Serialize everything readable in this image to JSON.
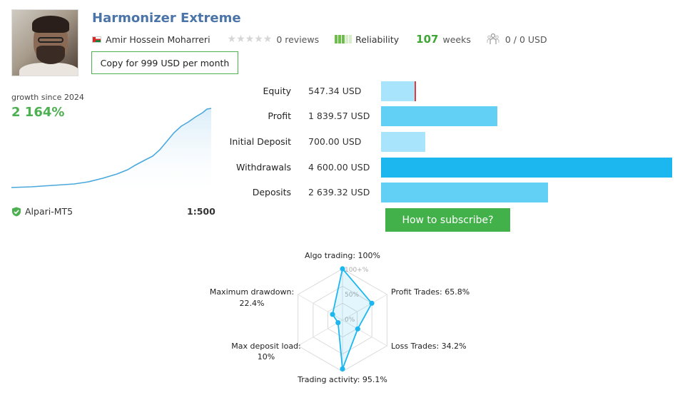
{
  "header": {
    "title": "Harmonizer Extreme",
    "author": "Amir Hossein Moharreri",
    "reviews": "0 reviews",
    "reliability_label": "Reliability",
    "weeks_value": "107",
    "weeks_label": "weeks",
    "subscribers": "0 / 0 USD",
    "copy_button": "Copy for 999 USD per month"
  },
  "growth": {
    "label": "growth since 2024",
    "value": "2 164%",
    "broker": "Alpari-MT5",
    "leverage": "1:500"
  },
  "stats": [
    {
      "label": "Equity",
      "value": "547.34 USD",
      "amount": 547.34,
      "color": "#a8e4fb",
      "marker": true
    },
    {
      "label": "Profit",
      "value": "1 839.57 USD",
      "amount": 1839.57,
      "color": "#62cff5"
    },
    {
      "label": "Initial Deposit",
      "value": "700.00 USD",
      "amount": 700.0,
      "color": "#a8e4fb"
    },
    {
      "label": "Withdrawals",
      "value": "4 600.00 USD",
      "amount": 4600.0,
      "color": "#1db7f0"
    },
    {
      "label": "Deposits",
      "value": "2 639.32 USD",
      "amount": 2639.32,
      "color": "#62cff5"
    }
  ],
  "subscribe_button": "How to subscribe?",
  "radar": {
    "grid_labels": [
      "100+%",
      "50%",
      "0%"
    ],
    "axes": [
      {
        "label": "Algo trading: 100%",
        "value": 1.0
      },
      {
        "label": "Profit Trades: 65.8%",
        "value": 0.658
      },
      {
        "label": "Loss Trades: 34.2%",
        "value": 0.342
      },
      {
        "label": "Trading activity: 95.1%",
        "value": 0.951
      },
      {
        "label1": "Max deposit load:",
        "label2": "10%",
        "value": 0.1
      },
      {
        "label1": "Maximum drawdown:",
        "label2": "22.4%",
        "value": 0.224
      }
    ]
  }
}
